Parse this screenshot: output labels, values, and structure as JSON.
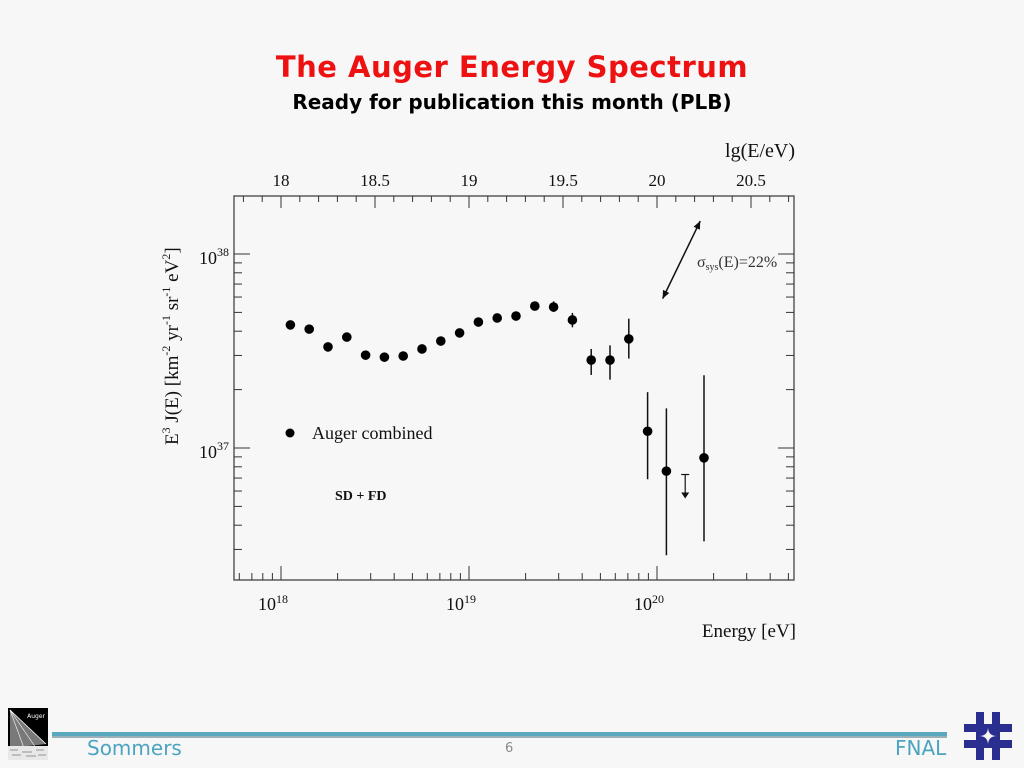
{
  "slide": {
    "title": "The Auger Energy Spectrum",
    "subtitle": "Ready for publication this month (PLB)",
    "footer": {
      "author": "Sommers",
      "page_number": "6",
      "institution": "FNAL",
      "left_logo_label": "Auger"
    }
  },
  "chart_data": {
    "type": "scatter",
    "xscale": "log",
    "yscale": "log",
    "xlabel": "Energy [eV]",
    "ylabel_parts": [
      "E",
      "3",
      " J(E) [km",
      "-2",
      " yr",
      "-1",
      " sr",
      "-1",
      " eV",
      "2",
      "]"
    ],
    "top_axis_label": "lg(E/eV)",
    "top_ticks": [
      "18",
      "18.5",
      "19",
      "19.5",
      "20",
      "20.5"
    ],
    "top_tick_values": [
      18,
      18.5,
      19,
      19.5,
      20,
      20.5
    ],
    "bottom_ticks": [
      {
        "base": "10",
        "exp": "18",
        "lg": 18
      },
      {
        "base": "10",
        "exp": "19",
        "lg": 19
      },
      {
        "base": "10",
        "exp": "20",
        "lg": 20
      }
    ],
    "y_ticks": [
      {
        "base": "10",
        "exp": "38",
        "log10": 38
      },
      {
        "base": "10",
        "exp": "37",
        "log10": 37
      }
    ],
    "xlim_lg": [
      17.74,
      20.72
    ],
    "ylim_log10": [
      36.35,
      38.3
    ],
    "legend": {
      "marker": "filled-circle",
      "label": "Auger combined",
      "position": "middle-left"
    },
    "annotations": {
      "method": "SD + FD",
      "systematic_prefix": "σ",
      "systematic_sub": "sys",
      "systematic_suffix": "(E)=22%"
    },
    "series": [
      {
        "name": "Auger combined",
        "points": [
          {
            "lgE": 18.05,
            "value": 4.31e+37,
            "err_lo": 4.15e+37,
            "err_hi": 4.47e+37
          },
          {
            "lgE": 18.15,
            "value": 4.1e+37,
            "err_lo": 3.95e+37,
            "err_hi": 4.25e+37
          },
          {
            "lgE": 18.25,
            "value": 3.32e+37,
            "err_lo": 3.18e+37,
            "err_hi": 3.47e+37
          },
          {
            "lgE": 18.35,
            "value": 3.73e+37,
            "err_lo": 3.57e+37,
            "err_hi": 3.9e+37
          },
          {
            "lgE": 18.45,
            "value": 3.01e+37,
            "err_lo": 2.92e+37,
            "err_hi": 3.1e+37
          },
          {
            "lgE": 18.55,
            "value": 2.94e+37,
            "err_lo": 2.85e+37,
            "err_hi": 3.03e+37
          },
          {
            "lgE": 18.65,
            "value": 2.98e+37,
            "err_lo": 2.89e+37,
            "err_hi": 3.07e+37
          },
          {
            "lgE": 18.75,
            "value": 3.24e+37,
            "err_lo": 3.14e+37,
            "err_hi": 3.34e+37
          },
          {
            "lgE": 18.85,
            "value": 3.56e+37,
            "err_lo": 3.45e+37,
            "err_hi": 3.67e+37
          },
          {
            "lgE": 18.95,
            "value": 3.92e+37,
            "err_lo": 3.8e+37,
            "err_hi": 4.04e+37
          },
          {
            "lgE": 19.05,
            "value": 4.46e+37,
            "err_lo": 4.32e+37,
            "err_hi": 4.6e+37
          },
          {
            "lgE": 19.15,
            "value": 4.68e+37,
            "err_lo": 4.53e+37,
            "err_hi": 4.83e+37
          },
          {
            "lgE": 19.25,
            "value": 4.79e+37,
            "err_lo": 4.63e+37,
            "err_hi": 4.95e+37
          },
          {
            "lgE": 19.35,
            "value": 5.39e+37,
            "err_lo": 5.15e+37,
            "err_hi": 5.64e+37
          },
          {
            "lgE": 19.45,
            "value": 5.33e+37,
            "err_lo": 5.03e+37,
            "err_hi": 5.7e+37
          },
          {
            "lgE": 19.55,
            "value": 4.57e+37,
            "err_lo": 4.19e+37,
            "err_hi": 4.97e+37
          },
          {
            "lgE": 19.65,
            "value": 2.84e+37,
            "err_lo": 2.38e+37,
            "err_hi": 3.24e+37
          },
          {
            "lgE": 19.75,
            "value": 2.84e+37,
            "err_lo": 2.25e+37,
            "err_hi": 3.38e+37
          },
          {
            "lgE": 19.85,
            "value": 3.65e+37,
            "err_lo": 2.89e+37,
            "err_hi": 4.64e+37
          },
          {
            "lgE": 19.95,
            "value": 1.22e+37,
            "err_lo": 6.9e+36,
            "err_hi": 1.94e+37
          },
          {
            "lgE": 20.05,
            "value": 7.6e+36,
            "err_lo": 2.8e+36,
            "err_hi": 1.6e+37
          },
          {
            "lgE": 20.25,
            "value": 8.9e+36,
            "err_lo": 3.3e+36,
            "err_hi": 2.37e+37
          }
        ],
        "upper_limits": [
          {
            "lgE": 20.15,
            "value": 7.3e+36
          }
        ]
      }
    ],
    "systematic_arrow": {
      "lgE_from": 20.03,
      "log10_from": 37.77,
      "lgE_to": 20.23,
      "log10_to": 38.17
    }
  }
}
